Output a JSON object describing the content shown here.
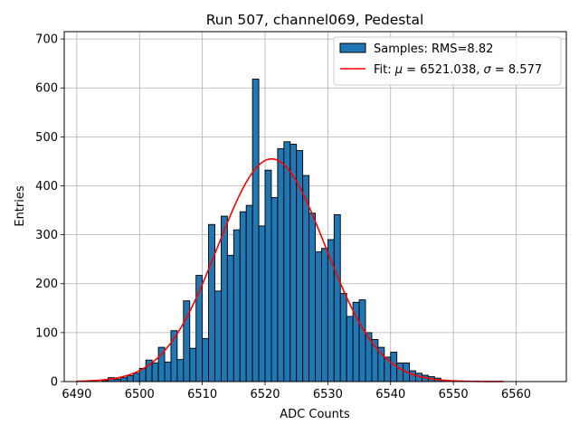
{
  "chart_data": {
    "type": "bar",
    "title": "Run 507, channel069, Pedestal",
    "xlabel": "ADC Counts",
    "ylabel": "Entries",
    "xlim": [
      6488,
      6568
    ],
    "ylim": [
      0,
      715
    ],
    "xticks": [
      6490,
      6500,
      6510,
      6520,
      6530,
      6540,
      6550,
      6560
    ],
    "yticks": [
      0,
      100,
      200,
      300,
      400,
      500,
      600,
      700
    ],
    "grid": true,
    "legend_position": "top-right",
    "bar_color": "#1f77b4",
    "bar_edge_color": "#000000",
    "fit_color": "#ff0000",
    "bin_width": 1,
    "bins": [
      [
        6494,
        2
      ],
      [
        6495,
        8
      ],
      [
        6496,
        5
      ],
      [
        6497,
        8
      ],
      [
        6498,
        12
      ],
      [
        6499,
        17
      ],
      [
        6500,
        27
      ],
      [
        6501,
        44
      ],
      [
        6502,
        38
      ],
      [
        6503,
        70
      ],
      [
        6504,
        40
      ],
      [
        6505,
        104
      ],
      [
        6506,
        45
      ],
      [
        6507,
        165
      ],
      [
        6508,
        68
      ],
      [
        6509,
        217
      ],
      [
        6510,
        88
      ],
      [
        6511,
        321
      ],
      [
        6512,
        185
      ],
      [
        6513,
        338
      ],
      [
        6514,
        258
      ],
      [
        6515,
        310
      ],
      [
        6516,
        347
      ],
      [
        6517,
        360
      ],
      [
        6518,
        618
      ],
      [
        6519,
        318
      ],
      [
        6520,
        432
      ],
      [
        6521,
        376
      ],
      [
        6522,
        476
      ],
      [
        6523,
        490
      ],
      [
        6524,
        485
      ],
      [
        6525,
        472
      ],
      [
        6526,
        421
      ],
      [
        6527,
        344
      ],
      [
        6528,
        265
      ],
      [
        6529,
        272
      ],
      [
        6530,
        290
      ],
      [
        6531,
        341
      ],
      [
        6532,
        180
      ],
      [
        6533,
        133
      ],
      [
        6534,
        162
      ],
      [
        6535,
        167
      ],
      [
        6536,
        100
      ],
      [
        6537,
        86
      ],
      [
        6538,
        70
      ],
      [
        6539,
        50
      ],
      [
        6540,
        60
      ],
      [
        6541,
        38
      ],
      [
        6542,
        38
      ],
      [
        6543,
        22
      ],
      [
        6544,
        17
      ],
      [
        6545,
        13
      ],
      [
        6546,
        10
      ],
      [
        6547,
        7
      ],
      [
        6548,
        3
      ],
      [
        6549,
        1
      ],
      [
        6550,
        1
      ]
    ],
    "fit": {
      "mu": 6521.038,
      "sigma": 8.577,
      "amplitude": 455,
      "x_range": [
        6490,
        6558
      ]
    },
    "legend": {
      "histogram_label": "Samples: RMS=8.82",
      "fit_label_prefix": "Fit: ",
      "fit_mu_symbol": "μ",
      "fit_mu_text": " = 6521.038, ",
      "fit_sigma_symbol": "σ",
      "fit_sigma_text": " = 8.577"
    }
  }
}
